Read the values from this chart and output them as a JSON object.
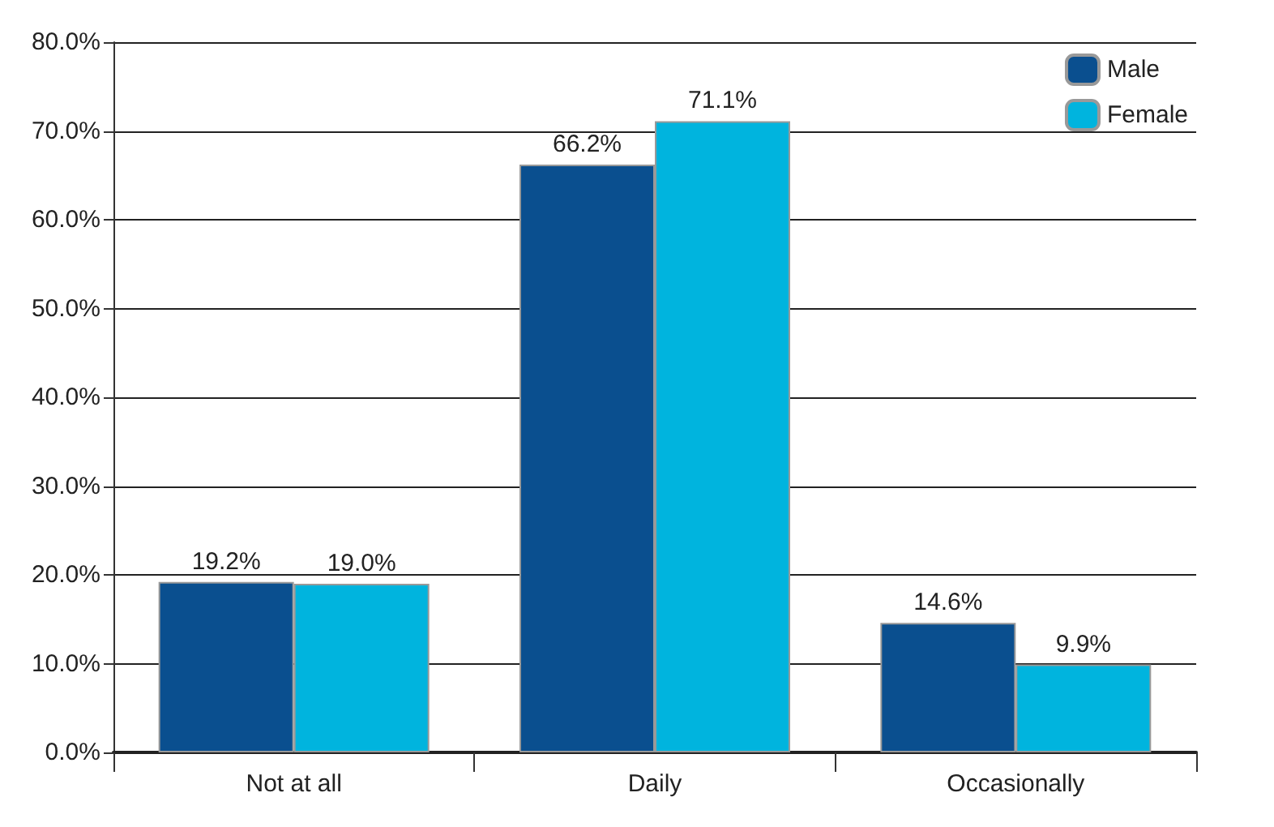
{
  "chart_data": {
    "type": "bar",
    "categories": [
      "Not at all",
      "Daily",
      "Occasionally"
    ],
    "series": [
      {
        "name": "Male",
        "color": "#0a4f8f",
        "values": [
          19.2,
          66.2,
          14.6
        ],
        "value_labels": [
          "19.2%",
          "66.2%",
          "14.6%"
        ]
      },
      {
        "name": "Female",
        "color": "#00b4de",
        "values": [
          19.0,
          71.1,
          9.9
        ],
        "value_labels": [
          "19.0%",
          "71.1%",
          "9.9%"
        ]
      }
    ],
    "ylim": [
      0,
      80
    ],
    "yticks": [
      {
        "value": 0,
        "label": "0.0%"
      },
      {
        "value": 10,
        "label": "10.0%"
      },
      {
        "value": 20,
        "label": "20.0%"
      },
      {
        "value": 30,
        "label": "30.0%"
      },
      {
        "value": 40,
        "label": "40.0%"
      },
      {
        "value": 50,
        "label": "50.0%"
      },
      {
        "value": 60,
        "label": "60.0%"
      },
      {
        "value": 70,
        "label": "70.0%"
      },
      {
        "value": 80,
        "label": "80.0%"
      }
    ],
    "grid": "y",
    "legend": "top right"
  }
}
